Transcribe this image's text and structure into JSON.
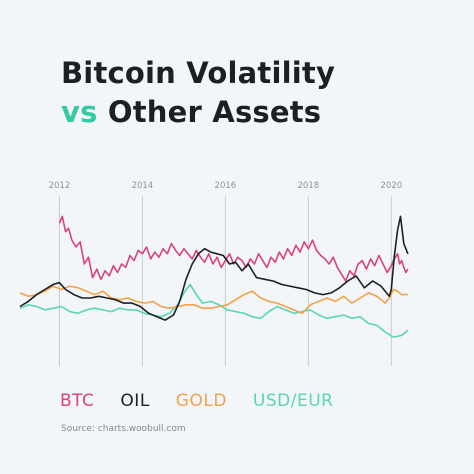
{
  "title": {
    "line1": "Bitcoin Volatility",
    "line2_accent": "vs",
    "line2_rest": " Other Assets"
  },
  "source": "Source: charts.woobull.com",
  "colors": {
    "btc": "#d9437a",
    "oil": "#1d1f24",
    "gold": "#f2a24b",
    "usdeur": "#57d6b5",
    "grid": "#c6cdd2",
    "accent": "#35c9a5"
  },
  "chart_data": {
    "type": "line",
    "title": "Bitcoin Volatility vs Other Assets",
    "xlabel": "",
    "ylabel": "",
    "xlim": [
      2011.1,
      2020.5
    ],
    "ylim": [
      0,
      100
    ],
    "x_ticks": [
      "2012",
      "2014",
      "2016",
      "2018",
      "2020"
    ],
    "grid": "vertical lines at tick years",
    "legend": "bottom",
    "series": [
      {
        "name": "BTC",
        "color": "#d9437a",
        "x": [
          2012.05,
          2012.12,
          2012.2,
          2012.27,
          2012.35,
          2012.45,
          2012.55,
          2012.65,
          2012.75,
          2012.85,
          2012.95,
          2013.05,
          2013.15,
          2013.25,
          2013.35,
          2013.45,
          2013.55,
          2013.65,
          2013.75,
          2013.85,
          2013.95,
          2014.05,
          2014.15,
          2014.25,
          2014.35,
          2014.45,
          2014.55,
          2014.65,
          2014.75,
          2014.85,
          2014.95,
          2015.05,
          2015.15,
          2015.25,
          2015.35,
          2015.45,
          2015.55,
          2015.65,
          2015.75,
          2015.85,
          2015.95,
          2016.05,
          2016.15,
          2016.25,
          2016.35,
          2016.45,
          2016.55,
          2016.65,
          2016.75,
          2016.85,
          2016.95,
          2017.05,
          2017.15,
          2017.25,
          2017.35,
          2017.45,
          2017.55,
          2017.65,
          2017.75,
          2017.85,
          2017.95,
          2018.05,
          2018.15,
          2018.25,
          2018.35,
          2018.45,
          2018.55,
          2018.65,
          2018.75,
          2018.85,
          2018.95,
          2019.05,
          2019.15,
          2019.25,
          2019.35,
          2019.45,
          2019.55,
          2019.65,
          2019.75,
          2019.85,
          2019.95,
          2020.05,
          2020.1,
          2020.15,
          2020.2,
          2020.25,
          2020.3,
          2020.35,
          2020.4,
          2020.45
        ],
        "values": [
          84,
          88,
          79,
          81,
          74,
          70,
          73,
          60,
          64,
          52,
          57,
          51,
          56,
          53,
          59,
          55,
          60,
          58,
          65,
          62,
          68,
          66,
          70,
          63,
          67,
          64,
          69,
          66,
          72,
          68,
          65,
          69,
          66,
          63,
          68,
          64,
          61,
          66,
          60,
          64,
          58,
          62,
          66,
          60,
          64,
          62,
          58,
          63,
          60,
          66,
          62,
          58,
          64,
          61,
          67,
          63,
          69,
          65,
          71,
          67,
          73,
          69,
          74,
          68,
          65,
          63,
          60,
          64,
          58,
          54,
          50,
          56,
          53,
          60,
          62,
          57,
          63,
          59,
          65,
          60,
          55,
          59,
          62,
          64,
          66,
          60,
          62,
          58,
          55,
          57
        ]
      },
      {
        "name": "OIL",
        "color": "#1d1f24",
        "x": [
          2011.1,
          2011.3,
          2011.5,
          2011.7,
          2011.9,
          2012.05,
          2012.2,
          2012.4,
          2012.6,
          2012.8,
          2013.0,
          2013.2,
          2013.4,
          2013.6,
          2013.8,
          2014.0,
          2014.2,
          2014.4,
          2014.6,
          2014.8,
          2014.95,
          2015.1,
          2015.25,
          2015.4,
          2015.55,
          2015.7,
          2015.85,
          2016.0,
          2016.15,
          2016.3,
          2016.45,
          2016.6,
          2016.8,
          2017.0,
          2017.2,
          2017.4,
          2017.6,
          2017.8,
          2018.0,
          2018.2,
          2018.4,
          2018.6,
          2018.8,
          2019.0,
          2019.2,
          2019.4,
          2019.6,
          2019.8,
          2020.0,
          2020.05,
          2020.12,
          2020.2,
          2020.27,
          2020.35,
          2020.45
        ],
        "values": [
          35,
          38,
          42,
          45,
          48,
          49,
          45,
          42,
          40,
          40,
          41,
          40,
          39,
          37,
          37,
          35,
          31,
          29,
          27,
          30,
          38,
          51,
          60,
          66,
          69,
          67,
          66,
          65,
          60,
          61,
          56,
          60,
          52,
          51,
          50,
          48,
          47,
          46,
          45,
          43,
          42,
          43,
          46,
          50,
          53,
          46,
          50,
          47,
          41,
          45,
          64,
          80,
          88,
          72,
          66
        ]
      },
      {
        "name": "GOLD",
        "color": "#f2a24b",
        "x": [
          2011.1,
          2011.3,
          2011.5,
          2011.7,
          2011.9,
          2012.1,
          2012.3,
          2012.5,
          2012.7,
          2012.9,
          2013.1,
          2013.3,
          2013.5,
          2013.7,
          2013.9,
          2014.1,
          2014.3,
          2014.5,
          2014.7,
          2014.9,
          2015.1,
          2015.3,
          2015.5,
          2015.7,
          2015.9,
          2016.1,
          2016.3,
          2016.5,
          2016.7,
          2016.9,
          2017.1,
          2017.3,
          2017.5,
          2017.7,
          2017.9,
          2018.1,
          2018.3,
          2018.5,
          2018.7,
          2018.9,
          2019.1,
          2019.3,
          2019.5,
          2019.7,
          2019.9,
          2020.0,
          2020.1,
          2020.2,
          2020.3,
          2020.45
        ],
        "values": [
          43,
          41,
          42,
          44,
          47,
          45,
          47,
          46,
          44,
          42,
          44,
          40,
          39,
          40,
          38,
          37,
          38,
          35,
          34,
          35,
          36,
          36,
          34,
          34,
          35,
          36,
          39,
          42,
          44,
          40,
          38,
          37,
          35,
          33,
          31,
          36,
          38,
          40,
          38,
          41,
          37,
          40,
          43,
          41,
          37,
          40,
          45,
          44,
          42,
          42
        ]
      },
      {
        "name": "USD/EUR",
        "color": "#57d6b5",
        "x": [
          2011.1,
          2011.3,
          2011.5,
          2011.7,
          2011.9,
          2012.1,
          2012.3,
          2012.5,
          2012.7,
          2012.9,
          2013.1,
          2013.3,
          2013.5,
          2013.7,
          2013.9,
          2014.1,
          2014.3,
          2014.5,
          2014.7,
          2014.9,
          2015.05,
          2015.2,
          2015.35,
          2015.5,
          2015.7,
          2015.9,
          2016.1,
          2016.3,
          2016.5,
          2016.7,
          2016.9,
          2017.1,
          2017.3,
          2017.5,
          2017.7,
          2017.9,
          2018.1,
          2018.3,
          2018.5,
          2018.7,
          2018.9,
          2019.1,
          2019.3,
          2019.5,
          2019.7,
          2019.9,
          2020.1,
          2020.3,
          2020.45
        ],
        "values": [
          34,
          36,
          35,
          33,
          34,
          35,
          32,
          31,
          33,
          34,
          33,
          32,
          34,
          33,
          33,
          31,
          30,
          29,
          31,
          36,
          43,
          48,
          42,
          37,
          38,
          36,
          33,
          32,
          31,
          29,
          28,
          32,
          35,
          33,
          31,
          32,
          33,
          30,
          28,
          29,
          30,
          28,
          29,
          25,
          24,
          20,
          17,
          18,
          21
        ]
      }
    ]
  }
}
